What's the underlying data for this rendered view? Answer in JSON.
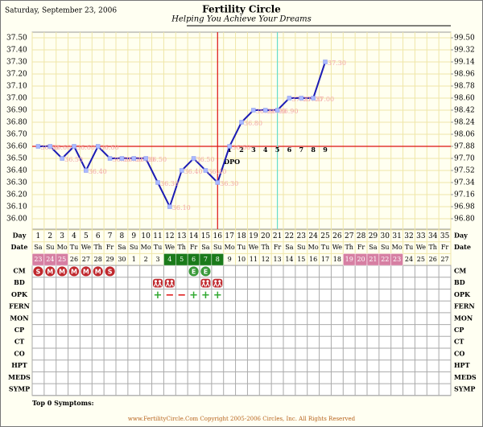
{
  "header": {
    "date": "Saturday, September 23, 2006",
    "title": "Fertility Circle",
    "subtitle": "Helping You Achieve Your Dreams"
  },
  "chart_data": {
    "type": "line",
    "categories": [
      1,
      2,
      3,
      4,
      5,
      6,
      7,
      8,
      9,
      10,
      11,
      12,
      13,
      14,
      15,
      16,
      17,
      18,
      19,
      20,
      21,
      22,
      23,
      24,
      25,
      26,
      27,
      28,
      29,
      30,
      31,
      32,
      33,
      34,
      35
    ],
    "series": [
      {
        "color": "#1c1cb4",
        "values": [
          36.6,
          36.6,
          36.5,
          36.6,
          36.4,
          36.6,
          36.5,
          36.5,
          36.5,
          36.5,
          36.3,
          36.1,
          36.4,
          36.5,
          36.4,
          36.3,
          36.6,
          36.8,
          36.9,
          36.9,
          36.9,
          37.0,
          37.0,
          37.0,
          37.3,
          null,
          null,
          null,
          null,
          null,
          null,
          null,
          null,
          null,
          null
        ],
        "value_labels": [
          "36.60",
          "36.60",
          "36.50",
          "36.60",
          "36.40",
          "36.60",
          "36.50",
          "36.50",
          "36.50",
          "36.50",
          "36.30",
          "36.10",
          "36.40",
          "36.50",
          "36.40",
          "36.30",
          "36.60",
          "36.80",
          "36.90",
          "36.90",
          "36.90",
          "37.00",
          "37.00",
          "37.00",
          "37.30",
          null,
          null,
          null,
          null,
          null,
          null,
          null,
          null,
          null,
          null
        ]
      }
    ],
    "ylim": [
      36.0,
      37.5
    ],
    "yticks": [
      {
        "value": 37.5,
        "label": "37.50"
      },
      {
        "value": 37.4,
        "label": "37.40"
      },
      {
        "value": 37.3,
        "label": "37.30"
      },
      {
        "value": 37.2,
        "label": "37.20"
      },
      {
        "value": 37.1,
        "label": "37.10"
      },
      {
        "value": 37.0,
        "label": "37.00"
      },
      {
        "value": 36.9,
        "label": "36.90"
      },
      {
        "value": 36.8,
        "label": "36.80"
      },
      {
        "value": 36.7,
        "label": "36.70"
      },
      {
        "value": 36.6,
        "label": "36.60"
      },
      {
        "value": 36.5,
        "label": "36.50"
      },
      {
        "value": 36.4,
        "label": "36.40"
      },
      {
        "value": 36.3,
        "label": "36.30"
      },
      {
        "value": 36.2,
        "label": "36.20"
      },
      {
        "value": 36.1,
        "label": "36.10"
      },
      {
        "value": 36.0,
        "label": "36.00"
      }
    ],
    "y2lim": [
      96.8,
      99.5
    ],
    "y2ticks": [
      {
        "value": 99.5,
        "label": "99.50"
      },
      99.32,
      99.14,
      98.96,
      98.78,
      {
        "value": 98.6,
        "label": "98.60"
      },
      98.42,
      98.24,
      98.06,
      97.88,
      {
        "value": 97.7,
        "label": "97.70"
      },
      97.52,
      97.34,
      97.16,
      96.98,
      {
        "value": 96.8,
        "label": "96.80"
      }
    ],
    "grid": true,
    "coverline": 36.6,
    "coverline_color": "#dd1111",
    "ovulation_day": 16,
    "marker_day": 21,
    "marker_color": "#66ddcc",
    "dpo": [
      null,
      null,
      null,
      null,
      null,
      null,
      null,
      null,
      null,
      null,
      null,
      null,
      null,
      null,
      null,
      null,
      1,
      2,
      3,
      4,
      5,
      6,
      7,
      8,
      9,
      null,
      null,
      null,
      null,
      null,
      null,
      null,
      null,
      null,
      null
    ],
    "dpo_label": "DPO",
    "row_labels": [
      "Day",
      "Date",
      "CM",
      "BD",
      "OPK",
      "FERN",
      "MON",
      "CP",
      "CT",
      "CO",
      "HPT",
      "MEDS",
      "SYMP"
    ],
    "weekdays": [
      "Sa",
      "Su",
      "Mo",
      "Tu",
      "We",
      "Th",
      "Fr",
      "Sa",
      "Su",
      "Mo",
      "Tu",
      "We",
      "Th",
      "Fr",
      "Sa",
      "Su",
      "Mo",
      "Tu",
      "We",
      "Th",
      "Fr",
      "Sa",
      "Su",
      "Mo",
      "Tu",
      "We",
      "Th",
      "Fr",
      "Sa",
      "Su",
      "Mo",
      "Tu",
      "We",
      "Th",
      "Fr"
    ],
    "dates": [
      23,
      24,
      25,
      26,
      27,
      28,
      29,
      30,
      1,
      2,
      3,
      4,
      5,
      6,
      7,
      8,
      9,
      10,
      11,
      12,
      13,
      14,
      15,
      16,
      17,
      18,
      19,
      20,
      21,
      22,
      23,
      24,
      25,
      26,
      27
    ],
    "date_colors": [
      "#d67fa3",
      "#d67fa3",
      "#d67fa3",
      null,
      null,
      null,
      null,
      null,
      null,
      null,
      null,
      "#1a7a1a",
      "#1a7a1a",
      "#1a7a1a",
      "#1a7a1a",
      "#1a7a1a",
      null,
      null,
      null,
      null,
      null,
      null,
      null,
      null,
      null,
      null,
      "#d67fa3",
      "#d67fa3",
      "#d67fa3",
      "#d67fa3",
      "#d67fa3",
      null,
      null,
      null,
      null
    ],
    "cm": [
      "S",
      "M",
      "M",
      "M",
      "M",
      "M",
      "S",
      null,
      null,
      null,
      null,
      null,
      null,
      "E",
      "E",
      null,
      null,
      null,
      null,
      null,
      null,
      null,
      null,
      null,
      null,
      null,
      null,
      null,
      null,
      null,
      null,
      null,
      null,
      null,
      null
    ],
    "cm_colors": {
      "S": "#c0282d",
      "M": "#c0282d",
      "E": "#3a9a3a"
    },
    "bd": [
      null,
      null,
      null,
      null,
      null,
      null,
      null,
      null,
      null,
      null,
      true,
      true,
      null,
      null,
      true,
      true,
      null,
      null,
      null,
      null,
      null,
      null,
      null,
      null,
      null,
      null,
      null,
      null,
      null,
      null,
      null,
      null,
      null,
      null,
      null
    ],
    "opk": [
      null,
      null,
      null,
      null,
      null,
      null,
      null,
      null,
      null,
      null,
      "+",
      "−",
      "−",
      "+",
      "+",
      "+",
      null,
      null,
      null,
      null,
      null,
      null,
      null,
      null,
      null,
      null,
      null,
      null,
      null,
      null,
      null,
      null,
      null,
      null,
      null
    ],
    "opk_colors": {
      "+": "#33aa33",
      "−": "#dd1111"
    },
    "symptoms_title": "Top 0 Symptoms:"
  },
  "footer": "www.FertilityCircle.Com Copyright 2005-2006 Circles, Inc. All Rights Reserved"
}
